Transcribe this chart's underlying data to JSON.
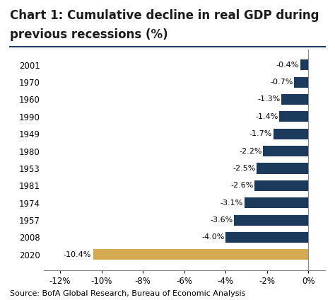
{
  "title_line1": "Chart 1: Cumulative decline in real GDP during",
  "title_line2": "previous recessions (%)",
  "years": [
    "2020",
    "2008",
    "1957",
    "1974",
    "1981",
    "1953",
    "1980",
    "1949",
    "1990",
    "1960",
    "1970",
    "2001"
  ],
  "values": [
    -10.4,
    -4.0,
    -3.6,
    -3.1,
    -2.6,
    -2.5,
    -2.2,
    -1.7,
    -1.4,
    -1.3,
    -0.7,
    -0.4
  ],
  "labels": [
    "-10.4%",
    "-4.0%",
    "-3.6%",
    "-3.1%",
    "-2.6%",
    "-2.5%",
    "-2.2%",
    "-1.7%",
    "-1.4%",
    "-1.3%",
    "-0.7%",
    "-0.4%"
  ],
  "bar_colors": [
    "#d4aa50",
    "#1b3a5c",
    "#1b3a5c",
    "#1b3a5c",
    "#1b3a5c",
    "#1b3a5c",
    "#1b3a5c",
    "#1b3a5c",
    "#1b3a5c",
    "#1b3a5c",
    "#1b3a5c",
    "#1b3a5c"
  ],
  "xlim": [
    -12.8,
    0.8
  ],
  "xticks": [
    -12,
    -10,
    -8,
    -6,
    -4,
    -2,
    0
  ],
  "xticklabels": [
    "-12%",
    "-10%",
    "-8%",
    "-6%",
    "-4%",
    "-2%",
    "0%"
  ],
  "source": "Source: BofA Global Research, Bureau of Economic Analysis",
  "background_color": "#ffffff",
  "title_fontsize": 12,
  "axis_fontsize": 8.5,
  "label_fontsize": 8,
  "source_fontsize": 8,
  "bar_height": 0.62,
  "title_color": "#1b1b1b",
  "title_line_color": "#1b3a5c",
  "spine_color": "#888888"
}
